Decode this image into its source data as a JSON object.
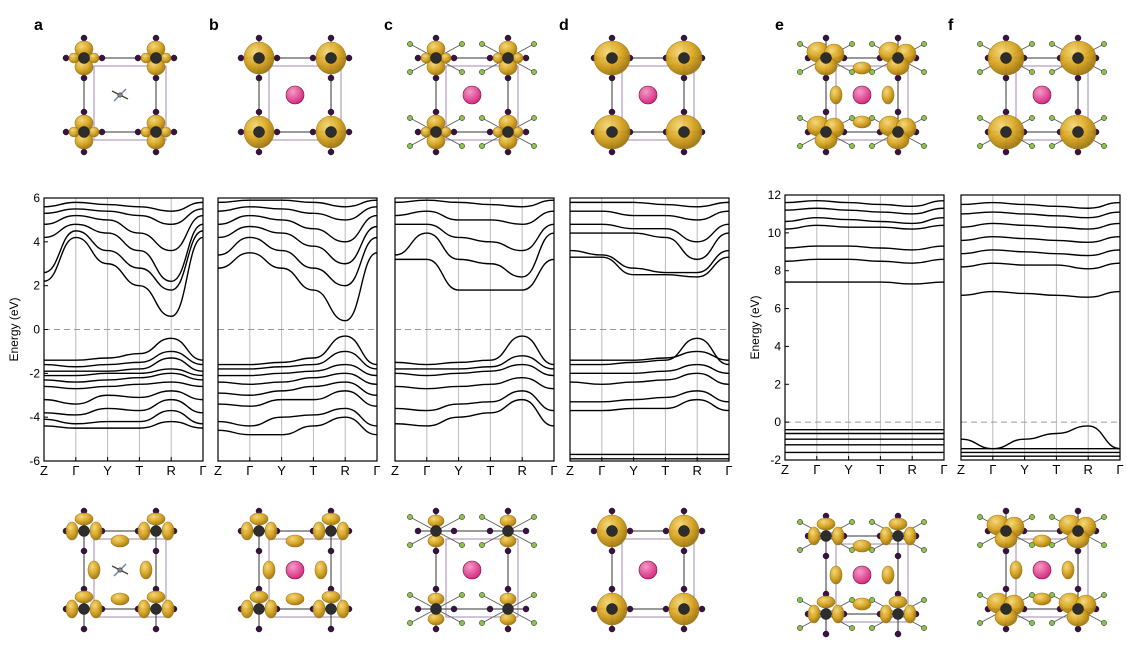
{
  "panels": [
    {
      "letter": "a"
    },
    {
      "letter": "b"
    },
    {
      "letter": "c"
    },
    {
      "letter": "d"
    },
    {
      "letter": "e"
    },
    {
      "letter": "f"
    }
  ],
  "colors": {
    "isosurface": "#d9a520",
    "isosurface_dark": "#9c7410",
    "isosurface_light": "#f3d777",
    "cation": "#d5287e",
    "iodide": "#3b1145",
    "iodide_faded": "#a48ab0",
    "lead": "#2d2d2d",
    "nitrogen": "#6a7fb5",
    "fluorine": "#8bc34a",
    "band_line": "#000000",
    "fermi_line": "#9a9a9a",
    "kpoint_line": "#bbbbbb"
  },
  "chart_data": [
    {
      "type": "line",
      "panel": "a",
      "ylabel": "Energy (eV)",
      "ylim": [
        -6,
        6
      ],
      "yticks": [
        -6,
        -4,
        -2,
        0,
        2,
        4,
        6
      ],
      "xticks": [
        "Z",
        "Γ",
        "Y",
        "T",
        "R",
        "Γ"
      ],
      "fermi_level": 0,
      "grid": "vertical lines at high-symmetry points",
      "series": [
        {
          "values": [
            -4.4,
            -4.5,
            -4.5,
            -4.5,
            -4.2,
            -4.5
          ]
        },
        {
          "values": [
            -4.1,
            -4.3,
            -4.2,
            -4.2,
            -3.7,
            -4.3
          ]
        },
        {
          "values": [
            -3.8,
            -3.9,
            -3.6,
            -3.7,
            -3.2,
            -3.8
          ]
        },
        {
          "values": [
            -3.2,
            -3.4,
            -3.0,
            -3.1,
            -2.8,
            -3.2
          ]
        },
        {
          "values": [
            -2.6,
            -2.7,
            -2.6,
            -2.5,
            -2.4,
            -2.6
          ]
        },
        {
          "values": [
            -2.3,
            -2.4,
            -2.3,
            -2.2,
            -2.0,
            -2.3
          ]
        },
        {
          "values": [
            -2.1,
            -2.1,
            -2.0,
            -2.0,
            -1.8,
            -2.1
          ]
        },
        {
          "values": [
            -1.9,
            -1.9,
            -1.9,
            -1.8,
            -1.3,
            -1.9
          ]
        },
        {
          "values": [
            -1.6,
            -1.7,
            -1.6,
            -1.5,
            -1.0,
            -1.6
          ]
        },
        {
          "values": [
            -1.4,
            -1.4,
            -1.3,
            -1.1,
            -0.4,
            -1.4
          ]
        },
        {
          "values": [
            2.2,
            4.2,
            3.0,
            2.0,
            0.6,
            4.2
          ]
        },
        {
          "values": [
            2.6,
            4.5,
            3.6,
            2.8,
            1.8,
            4.5
          ]
        },
        {
          "values": [
            4.2,
            4.8,
            4.4,
            3.6,
            2.2,
            4.8
          ]
        },
        {
          "values": [
            4.8,
            5.2,
            5.0,
            4.4,
            3.6,
            5.2
          ]
        },
        {
          "values": [
            5.3,
            5.5,
            5.4,
            5.2,
            4.8,
            5.5
          ]
        },
        {
          "values": [
            5.6,
            5.8,
            5.7,
            5.6,
            5.4,
            5.8
          ]
        }
      ]
    },
    {
      "type": "line",
      "panel": "b",
      "ylim": [
        -6,
        6
      ],
      "xticks": [
        "Z",
        "Γ",
        "Y",
        "T",
        "R",
        "Γ"
      ],
      "fermi_level": 0,
      "series": [
        {
          "values": [
            -4.6,
            -4.8,
            -4.8,
            -4.4,
            -4.0,
            -4.8
          ]
        },
        {
          "values": [
            -4.2,
            -4.4,
            -4.0,
            -3.9,
            -3.6,
            -4.4
          ]
        },
        {
          "values": [
            -3.4,
            -3.5,
            -3.2,
            -3.2,
            -2.8,
            -3.5
          ]
        },
        {
          "values": [
            -2.9,
            -3.0,
            -2.8,
            -2.6,
            -2.4,
            -3.0
          ]
        },
        {
          "values": [
            -2.4,
            -2.5,
            -2.4,
            -2.2,
            -2.0,
            -2.5
          ]
        },
        {
          "values": [
            -2.1,
            -2.1,
            -2.0,
            -1.9,
            -1.6,
            -2.1
          ]
        },
        {
          "values": [
            -1.8,
            -1.8,
            -1.7,
            -1.6,
            -1.0,
            -1.8
          ]
        },
        {
          "values": [
            -1.6,
            -1.6,
            -1.5,
            -1.3,
            -0.3,
            -1.6
          ]
        },
        {
          "values": [
            2.8,
            3.5,
            2.8,
            1.8,
            0.4,
            3.5
          ]
        },
        {
          "values": [
            3.4,
            4.2,
            3.6,
            2.8,
            2.0,
            4.2
          ]
        },
        {
          "values": [
            4.2,
            4.7,
            4.4,
            3.8,
            3.0,
            4.7
          ]
        },
        {
          "values": [
            4.8,
            5.2,
            5.0,
            4.6,
            4.0,
            5.2
          ]
        },
        {
          "values": [
            5.4,
            5.6,
            5.5,
            5.3,
            5.0,
            5.6
          ]
        },
        {
          "values": [
            5.8,
            5.9,
            5.9,
            5.8,
            5.6,
            5.9
          ]
        }
      ]
    },
    {
      "type": "line",
      "panel": "c",
      "ylim": [
        -6,
        6
      ],
      "xticks": [
        "Z",
        "Γ",
        "Y",
        "T",
        "R",
        "Γ"
      ],
      "fermi_level": 0,
      "series": [
        {
          "values": [
            -4.3,
            -4.4,
            -4.0,
            -3.8,
            -3.2,
            -4.4
          ]
        },
        {
          "values": [
            -3.6,
            -3.7,
            -3.4,
            -3.3,
            -2.8,
            -3.7
          ]
        },
        {
          "values": [
            -2.6,
            -2.7,
            -2.6,
            -2.5,
            -2.2,
            -2.7
          ]
        },
        {
          "values": [
            -2.0,
            -2.1,
            -2.0,
            -1.9,
            -1.6,
            -2.1
          ]
        },
        {
          "values": [
            -1.8,
            -1.8,
            -1.8,
            -1.7,
            -1.2,
            -1.8
          ]
        },
        {
          "values": [
            -1.5,
            -1.6,
            -1.5,
            -1.4,
            -0.3,
            -1.6
          ]
        },
        {
          "values": [
            3.2,
            3.2,
            1.8,
            1.8,
            1.8,
            3.2
          ]
        },
        {
          "values": [
            3.4,
            4.4,
            3.2,
            3.0,
            2.4,
            4.4
          ]
        },
        {
          "values": [
            4.8,
            4.8,
            4.2,
            4.0,
            3.6,
            4.8
          ]
        },
        {
          "values": [
            5.2,
            5.4,
            5.0,
            5.0,
            4.8,
            5.4
          ]
        },
        {
          "values": [
            5.8,
            5.9,
            5.8,
            5.7,
            5.6,
            5.9
          ]
        }
      ]
    },
    {
      "type": "line",
      "panel": "d",
      "ylim": [
        -6,
        6
      ],
      "xticks": [
        "Z",
        "Γ",
        "Y",
        "T",
        "R",
        "Γ"
      ],
      "fermi_level": 0,
      "series": [
        {
          "values": [
            -5.9,
            -5.9,
            -5.9,
            -5.9,
            -5.9,
            -5.9
          ]
        },
        {
          "values": [
            -5.7,
            -5.7,
            -5.7,
            -5.7,
            -5.7,
            -5.7
          ]
        },
        {
          "values": [
            -3.7,
            -3.7,
            -3.6,
            -3.6,
            -3.2,
            -3.7
          ]
        },
        {
          "values": [
            -3.3,
            -3.3,
            -3.2,
            -3.1,
            -2.8,
            -3.3
          ]
        },
        {
          "values": [
            -2.4,
            -2.5,
            -2.4,
            -2.3,
            -2.0,
            -2.5
          ]
        },
        {
          "values": [
            -2.0,
            -2.0,
            -2.0,
            -1.9,
            -1.6,
            -2.0
          ]
        },
        {
          "values": [
            -1.6,
            -1.6,
            -1.5,
            -1.4,
            -0.4,
            -1.6
          ]
        },
        {
          "values": [
            -1.4,
            -1.4,
            -1.4,
            -1.3,
            -1.0,
            -1.4
          ]
        },
        {
          "values": [
            3.3,
            3.3,
            2.5,
            2.5,
            2.4,
            3.3
          ]
        },
        {
          "values": [
            3.6,
            3.4,
            2.8,
            2.6,
            2.6,
            3.6
          ]
        },
        {
          "values": [
            4.4,
            4.4,
            4.4,
            4.2,
            3.2,
            4.4
          ]
        },
        {
          "values": [
            4.8,
            4.8,
            4.6,
            4.6,
            4.0,
            4.8
          ]
        },
        {
          "values": [
            5.4,
            5.4,
            5.2,
            5.2,
            5.0,
            5.4
          ]
        },
        {
          "values": [
            5.8,
            5.8,
            5.8,
            5.7,
            5.6,
            5.8
          ]
        }
      ]
    },
    {
      "type": "line",
      "panel": "e",
      "ylabel": "Energy (eV)",
      "ylim": [
        -2,
        12
      ],
      "yticks": [
        -2,
        0,
        2,
        4,
        6,
        8,
        10,
        12
      ],
      "xticks": [
        "Z",
        "Γ",
        "Y",
        "T",
        "R",
        "Γ"
      ],
      "fermi_level": 0,
      "series": [
        {
          "values": [
            -1.6,
            -1.6,
            -1.6,
            -1.6,
            -1.6,
            -1.6
          ]
        },
        {
          "values": [
            -1.2,
            -1.2,
            -1.2,
            -1.2,
            -1.2,
            -1.2
          ]
        },
        {
          "values": [
            -0.9,
            -0.9,
            -0.9,
            -0.9,
            -0.9,
            -0.9
          ]
        },
        {
          "values": [
            -0.6,
            -0.6,
            -0.6,
            -0.6,
            -0.6,
            -0.6
          ]
        },
        {
          "values": [
            -0.4,
            -0.4,
            -0.4,
            -0.4,
            -0.4,
            -0.4
          ]
        },
        {
          "values": [
            7.4,
            7.4,
            7.4,
            7.4,
            7.3,
            7.4
          ]
        },
        {
          "values": [
            8.5,
            8.6,
            8.6,
            8.5,
            8.4,
            8.6
          ]
        },
        {
          "values": [
            9.2,
            9.3,
            9.3,
            9.2,
            9.1,
            9.3
          ]
        },
        {
          "values": [
            10.2,
            10.4,
            10.3,
            10.3,
            10.2,
            10.4
          ]
        },
        {
          "values": [
            10.6,
            10.8,
            10.7,
            10.6,
            10.5,
            10.8
          ]
        },
        {
          "values": [
            11.2,
            11.3,
            11.2,
            11.1,
            11.0,
            11.3
          ]
        },
        {
          "values": [
            11.6,
            11.7,
            11.6,
            11.5,
            11.4,
            11.7
          ]
        }
      ]
    },
    {
      "type": "line",
      "panel": "f",
      "ylim": [
        -2,
        12
      ],
      "xticks": [
        "Z",
        "Γ",
        "Y",
        "T",
        "R",
        "Γ"
      ],
      "fermi_level": 0,
      "series": [
        {
          "values": [
            -1.8,
            -1.8,
            -1.8,
            -1.8,
            -1.8,
            -1.8
          ]
        },
        {
          "values": [
            -1.6,
            -1.6,
            -1.6,
            -1.6,
            -1.6,
            -1.6
          ]
        },
        {
          "values": [
            -1.4,
            -1.4,
            -1.4,
            -1.4,
            -1.4,
            -1.4
          ]
        },
        {
          "values": [
            -0.9,
            -1.4,
            -0.9,
            -0.6,
            -0.2,
            -1.4
          ]
        },
        {
          "values": [
            6.7,
            6.9,
            6.8,
            6.7,
            6.6,
            6.9
          ]
        },
        {
          "values": [
            8.2,
            8.4,
            8.3,
            8.3,
            8.1,
            8.4
          ]
        },
        {
          "values": [
            8.9,
            9.1,
            9.0,
            8.9,
            8.8,
            9.1
          ]
        },
        {
          "values": [
            9.6,
            9.8,
            9.7,
            9.6,
            9.5,
            9.8
          ]
        },
        {
          "values": [
            10.3,
            10.5,
            10.4,
            10.3,
            10.2,
            10.5
          ]
        },
        {
          "values": [
            11.0,
            11.1,
            11.0,
            10.9,
            10.8,
            11.1
          ]
        },
        {
          "values": [
            11.5,
            11.6,
            11.5,
            11.4,
            11.3,
            11.6
          ]
        }
      ]
    }
  ]
}
